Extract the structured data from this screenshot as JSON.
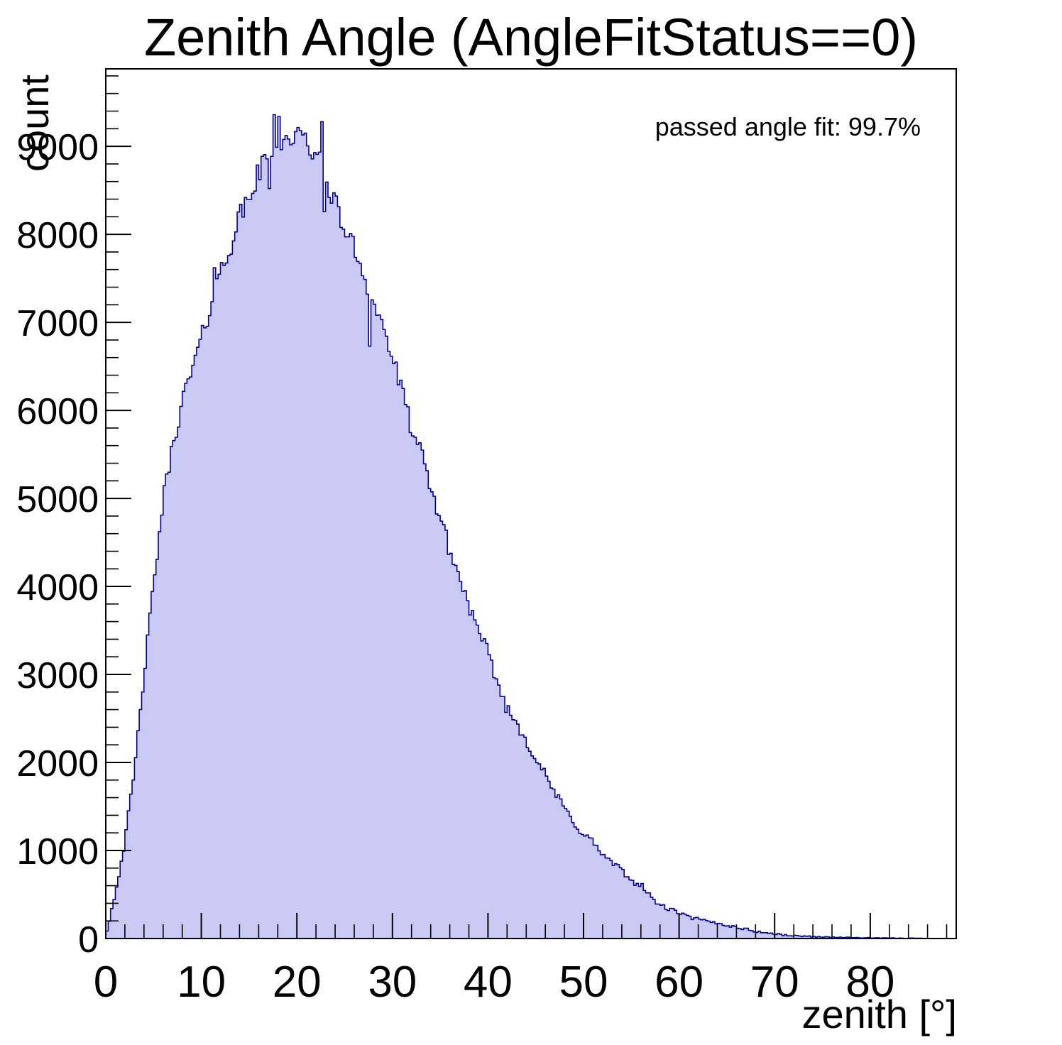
{
  "chart_data": {
    "type": "bar",
    "subtype": "filled-step-histogram",
    "title": "Zenith Angle (AngleFitStatus==0)",
    "xlabel": "zenith [°]",
    "ylabel": "count",
    "annotation": "passed angle fit: 99.7%",
    "xlim": [
      0,
      89
    ],
    "ylim": [
      0,
      9880
    ],
    "x_major_ticks": [
      0,
      10,
      20,
      30,
      40,
      50,
      60,
      70,
      80
    ],
    "x_minor_step": 2,
    "y_major_ticks": [
      0,
      1000,
      2000,
      3000,
      4000,
      5000,
      6000,
      7000,
      8000,
      9000
    ],
    "y_minor_step": 200,
    "grid": false,
    "legend": null,
    "bin_width_deg": 0.25,
    "envelope_x_deg": [
      0,
      1,
      2,
      3,
      4,
      5,
      6,
      7,
      8,
      9,
      10,
      11,
      12,
      13,
      14,
      15,
      16,
      17,
      18,
      19,
      20,
      21,
      22,
      23,
      24,
      25,
      26,
      27,
      28,
      29,
      30,
      31,
      32,
      33,
      34,
      35,
      36,
      37,
      38,
      39,
      40,
      41,
      42,
      43,
      44,
      45,
      46,
      47,
      48,
      49,
      50,
      51,
      52,
      53,
      54,
      55,
      56,
      57,
      58,
      59,
      60,
      61,
      62,
      63,
      64,
      65,
      66,
      67,
      68,
      69,
      70,
      71,
      72,
      73,
      74,
      75,
      76,
      77,
      78,
      79,
      80,
      81,
      82,
      83,
      84,
      85,
      86,
      87,
      88,
      89
    ],
    "envelope_counts": [
      30,
      520,
      1100,
      1900,
      3000,
      4000,
      4980,
      5600,
      6100,
      6450,
      6800,
      7200,
      7570,
      7850,
      8200,
      8400,
      8700,
      8900,
      9000,
      9080,
      9120,
      9050,
      8900,
      8650,
      8350,
      8050,
      7850,
      7550,
      7250,
      6950,
      6600,
      6200,
      5800,
      5500,
      5100,
      4800,
      4400,
      4100,
      3800,
      3450,
      3250,
      2900,
      2600,
      2450,
      2250,
      2050,
      1850,
      1650,
      1480,
      1320,
      1180,
      1100,
      945,
      860,
      770,
      650,
      620,
      470,
      380,
      330,
      295,
      240,
      220,
      190,
      175,
      150,
      128,
      106,
      80,
      66,
      52,
      40,
      31,
      27,
      22,
      18,
      15,
      13,
      11,
      9,
      7,
      6,
      5,
      4,
      4,
      3,
      2,
      2,
      1,
      1
    ],
    "notable_spikes": [
      {
        "x": 11.35,
        "count": 7620
      },
      {
        "x": 17.2,
        "count": 8520
      },
      {
        "x": 17.55,
        "count": 9360
      },
      {
        "x": 18.05,
        "count": 9340
      },
      {
        "x": 22.6,
        "count": 9280
      },
      {
        "x": 22.85,
        "count": 8260
      },
      {
        "x": 27.5,
        "count": 6730
      }
    ],
    "noise_sigma_scale": 1.4,
    "noise_seed": 42,
    "colors": {
      "fill": "#cacaf5",
      "line": "#00008f",
      "axis": "#000000",
      "background": "#ffffff",
      "text": "#000000"
    }
  }
}
